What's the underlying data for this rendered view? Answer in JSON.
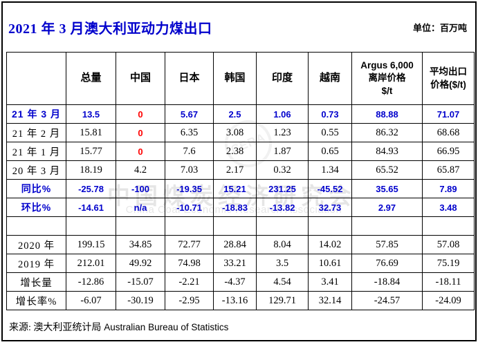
{
  "title": {
    "text": "2021 年 3 月澳大利亚动力煤出口",
    "unit_label": "单位：百万吨"
  },
  "colors": {
    "accent_blue": "#0000CC",
    "negative_red": "#FF0000",
    "text_black": "#000000",
    "watermark_gray": "#DDDDDD"
  },
  "watermark": {
    "logo_text": "CERA",
    "line1": "中国煤炭经济研究会",
    "line2": "China Coal Economic Research Association"
  },
  "footer": {
    "source_zh": "来源: 澳大利亚统计局",
    "source_en": "Australian Bureau of Statistics"
  },
  "chart_data": {
    "type": "table",
    "title": "2021 年 3 月澳大利亚动力煤出口",
    "unit": "百万吨",
    "columns": [
      [
        ""
      ],
      [
        "总量"
      ],
      [
        "中国"
      ],
      [
        "日本"
      ],
      [
        "韩国"
      ],
      [
        "印度"
      ],
      [
        "越南"
      ],
      [
        "Argus 6,000",
        "离岸价格",
        "$/t"
      ],
      [
        "平均出口",
        "价格($/t)"
      ]
    ],
    "rows": [
      {
        "label": "21 年 3 月",
        "color": "blue",
        "values": [
          "13.5",
          "0",
          "5.67",
          "2.5",
          "1.06",
          "0.73",
          "88.88",
          "71.07"
        ],
        "cell_colors": {
          "2": "red"
        }
      },
      {
        "label": "21 年 2 月",
        "color": "black",
        "values": [
          "15.81",
          "0",
          "6.35",
          "3.08",
          "1.23",
          "0.55",
          "86.32",
          "68.68"
        ],
        "cell_colors": {
          "2": "red"
        }
      },
      {
        "label": "21 年 1 月",
        "color": "black",
        "values": [
          "15.77",
          "0",
          "7.6",
          "2.38",
          "1.87",
          "0.65",
          "84.93",
          "66.95"
        ],
        "cell_colors": {
          "2": "red"
        }
      },
      {
        "label": "20 年 3 月",
        "color": "black",
        "values": [
          "18.19",
          "4.2",
          "7.03",
          "2.17",
          "0.32",
          "1.34",
          "65.52",
          "65.87"
        ]
      },
      {
        "label": "同比%",
        "color": "blue",
        "values": [
          "-25.78",
          "-100",
          "-19.35",
          "15.21",
          "231.25",
          "-45.52",
          "35.65",
          "7.89"
        ]
      },
      {
        "label": "环比%",
        "color": "blue",
        "values": [
          "-14.61",
          "n/a",
          "-10.71",
          "-18.83",
          "-13.82",
          "32.73",
          "2.97",
          "3.48"
        ]
      },
      {
        "label": "",
        "color": "black",
        "values": [
          "",
          "",
          "",
          "",
          "",
          "",
          "",
          ""
        ]
      },
      {
        "label": "2020 年",
        "color": "black",
        "values": [
          "199.15",
          "34.85",
          "72.77",
          "28.84",
          "8.04",
          "14.02",
          "57.85",
          "57.08"
        ]
      },
      {
        "label": "2019 年",
        "color": "black",
        "values": [
          "212.01",
          "49.92",
          "74.98",
          "33.21",
          "3.5",
          "10.61",
          "76.69",
          "75.19"
        ]
      },
      {
        "label": "增长量",
        "color": "black",
        "values": [
          "-12.86",
          "-15.07",
          "-2.21",
          "-4.37",
          "4.54",
          "3.41",
          "-18.84",
          "-18.11"
        ]
      },
      {
        "label": "增长率%",
        "color": "black",
        "values": [
          "-6.07",
          "-30.19",
          "-2.95",
          "-13.16",
          "129.71",
          "32.14",
          "-24.57",
          "-24.09"
        ]
      }
    ]
  }
}
